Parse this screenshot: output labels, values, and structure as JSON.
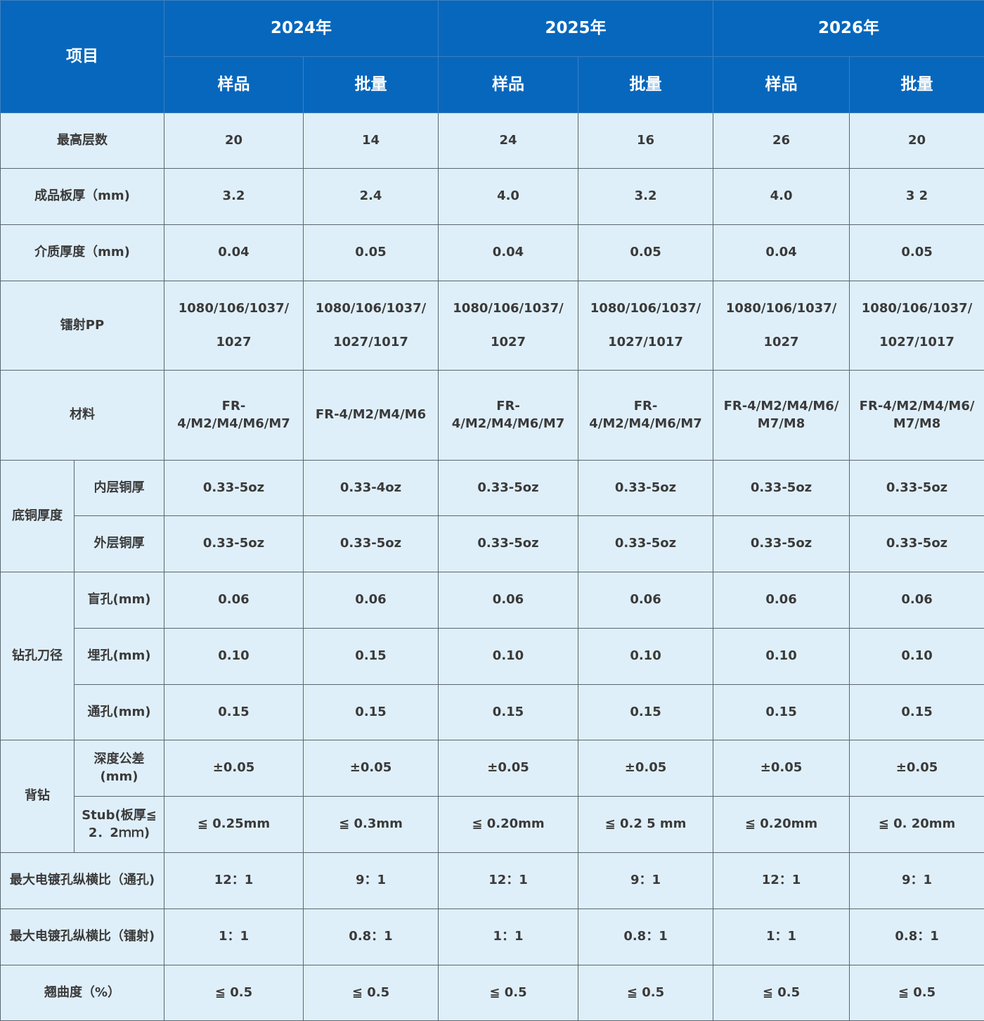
{
  "header": {
    "item_label": "项目",
    "years": [
      "2024年",
      "2025年",
      "2026年"
    ],
    "sub": [
      "样品",
      "批量",
      "样品",
      "批量",
      "样品",
      "批量"
    ]
  },
  "rows": [
    {
      "label": "最高层数",
      "values": [
        "20",
        "14",
        "24",
        "16",
        "26",
        "20"
      ]
    },
    {
      "label": "成品板厚（mm)",
      "values": [
        "3.2",
        "2.4",
        "4.0",
        "3.2",
        "4.0",
        "3 2"
      ]
    },
    {
      "label": "介质厚度（mm)",
      "values": [
        "0.04",
        "0.05",
        "0.04",
        "0.05",
        "0.04",
        "0.05"
      ]
    },
    {
      "label": "镭射PP",
      "values": [
        "1080/106/1037/\n1027",
        "1080/106/1037/\n1027/1017",
        "1080/106/1037/\n1027",
        "1080/106/1037/\n1027/1017",
        "1080/106/1037/\n1027",
        "1080/106/1037/\n1027/1017"
      ]
    },
    {
      "label": "材料",
      "values": [
        "FR-4/M2/M4/M6/M7",
        "FR-4/M2/M4/M6",
        "FR-4/M2/M4/M6/M7",
        "FR-4/M2/M4/M6/M7",
        "FR-4/M2/M4/M6/\nM7/M8",
        "FR-4/M2/M4/M6/\nM7/M8"
      ]
    },
    {
      "group": "底铜厚度",
      "label": "内层铜厚",
      "values": [
        "0.33-5oz",
        "0.33-4oz",
        "0.33-5oz",
        "0.33-5oz",
        "0.33-5oz",
        "0.33-5oz"
      ]
    },
    {
      "group": "底铜厚度",
      "label": "外层铜厚",
      "values": [
        "0.33-5oz",
        "0.33-5oz",
        "0.33-5oz",
        "0.33-5oz",
        "0.33-5oz",
        "0.33-5oz"
      ]
    },
    {
      "group": "钻孔刀径",
      "label": "盲孔(mm)",
      "values": [
        "0.06",
        "0.06",
        "0.06",
        "0.06",
        "0.06",
        "0.06"
      ]
    },
    {
      "group": "钻孔刀径",
      "label": "埋孔(mm)",
      "values": [
        "0.10",
        "0.15",
        "0.10",
        "0.10",
        "0.10",
        "0.10"
      ]
    },
    {
      "group": "钻孔刀径",
      "label": "通孔(mm)",
      "values": [
        "0.15",
        "0.15",
        "0.15",
        "0.15",
        "0.15",
        "0.15"
      ]
    },
    {
      "group": "背钻",
      "label": "深度公差\n(mm)",
      "values": [
        "±0.05",
        "±0.05",
        "±0.05",
        "±0.05",
        "±0.05",
        "±0.05"
      ]
    },
    {
      "group": "背钻",
      "label": "Stub(板厚≦\n2．2ｍｍ)",
      "values": [
        "≦ 0.25mm",
        "≦ 0.3mm",
        "≦ 0.20mm",
        "≦ 0.2 5 mm",
        "≦ 0.20mm",
        "≦ 0. 20mm"
      ]
    },
    {
      "label": "最大电镀孔纵横比（通孔)",
      "values": [
        "12：1",
        "9：1",
        "12：1",
        "9：1",
        "12：1",
        "9：1"
      ]
    },
    {
      "label": "最大电镀孔纵横比（镭射)",
      "values": [
        "1：1",
        "0.8：1",
        "1：1",
        "0.8：1",
        "1：1",
        "0.8：1"
      ]
    },
    {
      "label": "翘曲度（%）",
      "values": [
        "≦ 0.5",
        "≦ 0.5",
        "≦ 0.5",
        "≦ 0.5",
        "≦ 0.5",
        "≦ 0.5"
      ]
    }
  ],
  "colors": {
    "header_bg": "#0767bd",
    "body_bg": "#dfeff9",
    "text": "#3a3a3a"
  }
}
